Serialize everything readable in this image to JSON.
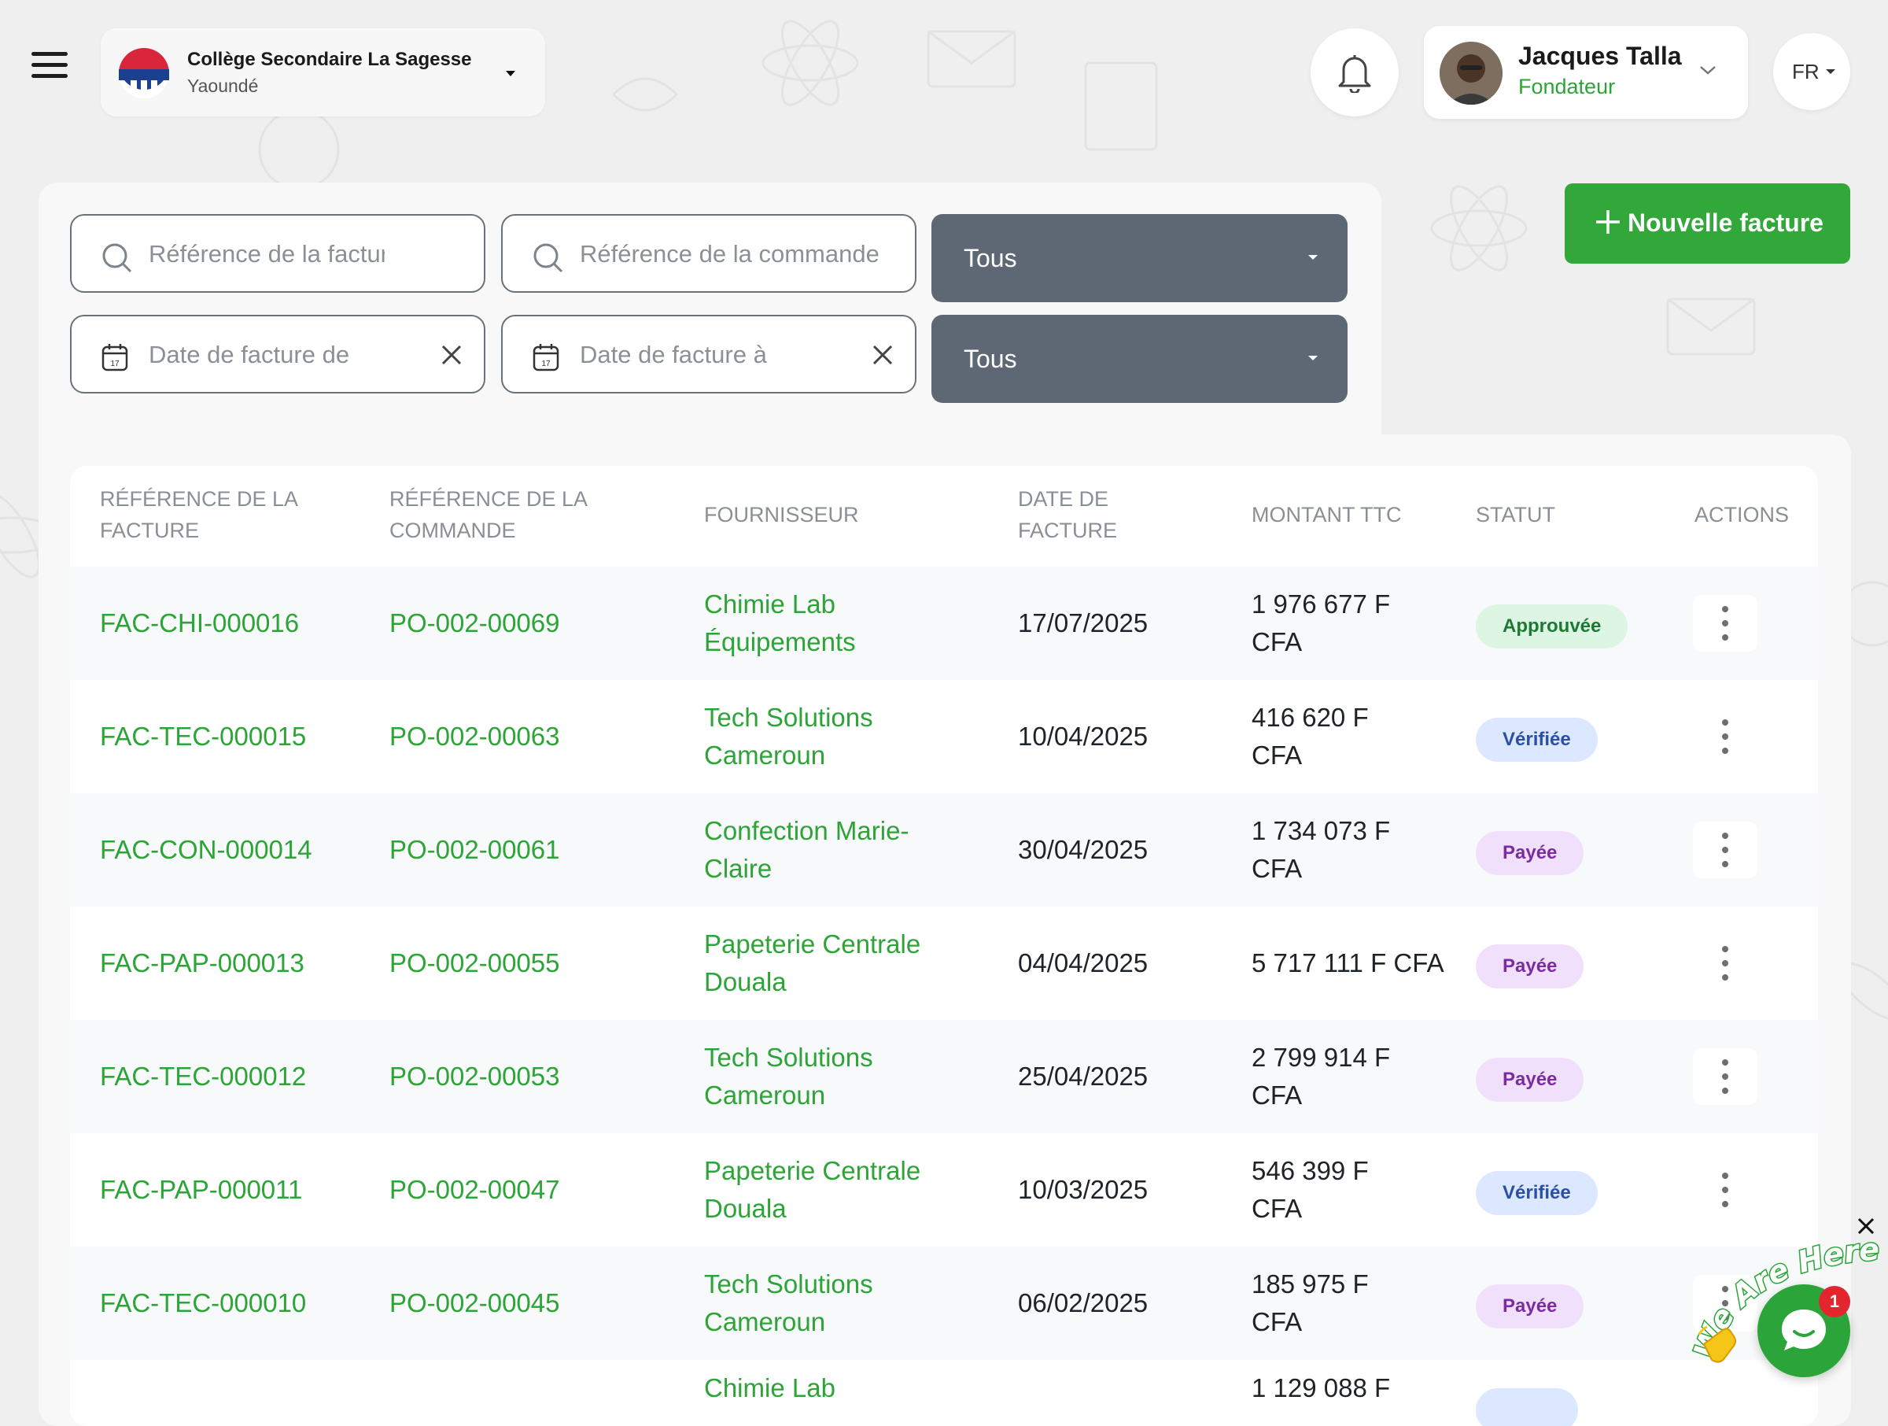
{
  "header": {
    "school_name": "Collège Secondaire La Sagesse",
    "school_city": "Yaoundé",
    "user_name": "Jacques Talla",
    "user_role": "Fondateur",
    "language": "FR"
  },
  "actions": {
    "new_invoice_label": "Nouvelle facture"
  },
  "filters": {
    "invoice_ref_placeholder": "Référence de la facture",
    "order_ref_placeholder": "Référence de la commande",
    "date_from_placeholder": "Date de facture de",
    "date_to_placeholder": "Date de facture à",
    "select_1_value": "Tous",
    "select_2_value": "Tous",
    "calendar_day": "17"
  },
  "table": {
    "columns": [
      "RÉFÉRENCE DE LA FACTURE",
      "RÉFÉRENCE DE LA COMMANDE",
      "FOURNISSEUR",
      "DATE DE FACTURE",
      "MONTANT TTC",
      "STATUT",
      "ACTIONS"
    ],
    "rows": [
      {
        "invoice": "FAC-CHI-000016",
        "order": "PO-002-00069",
        "supplier": "Chimie Lab Équipements",
        "date": "17/07/2025",
        "amount": "1 976 677 F CFA",
        "status": "Approuvée",
        "status_color": "#1e7a33"
      },
      {
        "invoice": "FAC-TEC-000015",
        "order": "PO-002-00063",
        "supplier": "Tech Solutions Cameroun",
        "date": "10/04/2025",
        "amount": "416 620 F CFA",
        "status": "Vérifiée",
        "status_color": "#2a4fa5"
      },
      {
        "invoice": "FAC-CON-000014",
        "order": "PO-002-00061",
        "supplier": "Confection Marie-Claire",
        "date": "30/04/2025",
        "amount": "1 734 073 F CFA",
        "status": "Payée",
        "status_color": "#7a2ca0"
      },
      {
        "invoice": "FAC-PAP-000013",
        "order": "PO-002-00055",
        "supplier": "Papeterie Centrale Douala",
        "date": "04/04/2025",
        "amount": "5 717 111 F CFA",
        "status": "Payée",
        "status_color": "#7a2ca0"
      },
      {
        "invoice": "FAC-TEC-000012",
        "order": "PO-002-00053",
        "supplier": "Tech Solutions Cameroun",
        "date": "25/04/2025",
        "amount": "2 799 914 F CFA",
        "status": "Payée",
        "status_color": "#7a2ca0"
      },
      {
        "invoice": "FAC-PAP-000011",
        "order": "PO-002-00047",
        "supplier": "Papeterie Centrale Douala",
        "date": "10/03/2025",
        "amount": "546 399 F CFA",
        "status": "Vérifiée",
        "status_color": "#2a4fa5"
      },
      {
        "invoice": "FAC-TEC-000010",
        "order": "PO-002-00045",
        "supplier": "Tech Solutions Cameroun",
        "date": "06/02/2025",
        "amount": "185 975 F CFA",
        "status": "Payée",
        "status_color": "#7a2ca0"
      }
    ],
    "partial_row": {
      "supplier": "Chimie Lab",
      "amount": "1 129 088 F"
    }
  },
  "chat": {
    "teaser": "We Are Here!",
    "unread_count": "1"
  },
  "colors": {
    "accent": "#32a83a",
    "select_bg": "#5d6874",
    "page_bg": "#efefef"
  },
  "icons": [
    "menu-icon",
    "caret-down-icon",
    "bell-icon",
    "chevron-down-icon",
    "search-icon",
    "calendar-icon",
    "close-icon",
    "plus-icon",
    "kebab-icon",
    "chat-icon",
    "wave-icon"
  ]
}
